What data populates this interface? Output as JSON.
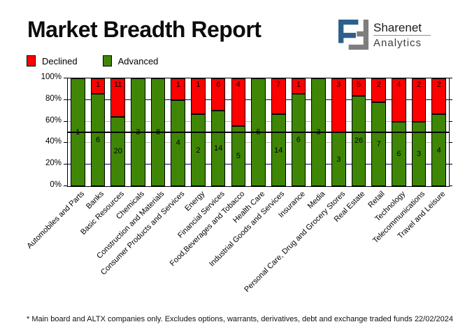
{
  "title": "Market Breadth Report",
  "logo": {
    "line1": "Sharenet",
    "line2": "Analytics",
    "blue": "#2d5f8b",
    "gray": "#7e7e7e"
  },
  "legend": [
    {
      "label": "Declined",
      "color": "#ff0000"
    },
    {
      "label": "Advanced",
      "color": "#3f8606"
    }
  ],
  "chart_data": {
    "type": "bar",
    "stacked": true,
    "unit": "percent share of companies in sector",
    "categories": [
      "Automobiles and Parts",
      "Banks",
      "Basic Resources",
      "Chemicals",
      "Construction and Materials",
      "Consumer Products and Services",
      "Energy",
      "Financial Services",
      "Food,Beverages and Tobacco",
      "Health Care",
      "Industrial Goods and Services",
      "Insurance",
      "Media",
      "Personal Care, Drug and Grocery Stores",
      "Real Estate",
      "Retail",
      "Technology",
      "Telecommunications",
      "Travel and Leisure"
    ],
    "series": [
      {
        "name": "Declined",
        "color": "#ff0000",
        "values": [
          0,
          1,
          11,
          0,
          0,
          1,
          1,
          6,
          4,
          0,
          7,
          1,
          0,
          3,
          5,
          2,
          4,
          2,
          2
        ]
      },
      {
        "name": "Advanced",
        "color": "#3f8606",
        "values": [
          1,
          6,
          20,
          3,
          8,
          4,
          2,
          14,
          5,
          5,
          14,
          6,
          3,
          3,
          26,
          7,
          6,
          3,
          4
        ]
      }
    ],
    "ylim": [
      0,
      100
    ],
    "y_ticks": [
      {
        "percent": 100,
        "label": "100%"
      },
      {
        "percent": 80,
        "label": "80%"
      },
      {
        "percent": 60,
        "label": "60%"
      },
      {
        "percent": 40,
        "label": "40%"
      },
      {
        "percent": 20,
        "label": "20%"
      },
      {
        "percent": 0,
        "label": "0%"
      }
    ],
    "gridlines": [
      {
        "percent": 80,
        "color": "#000080"
      },
      {
        "percent": 60,
        "color": "#c0c0c0"
      },
      {
        "percent": 40,
        "color": "#c0c0c0"
      },
      {
        "percent": 20,
        "color": "#000080"
      }
    ],
    "ref_line": {
      "percent": 50,
      "color": "#000000"
    },
    "legend_position": "top-left"
  },
  "footer": {
    "note": "* Main board and ALTX companies only. Excludes options, warrants, derivatives, debt and exchange traded funds",
    "date": "22/02/2024"
  }
}
